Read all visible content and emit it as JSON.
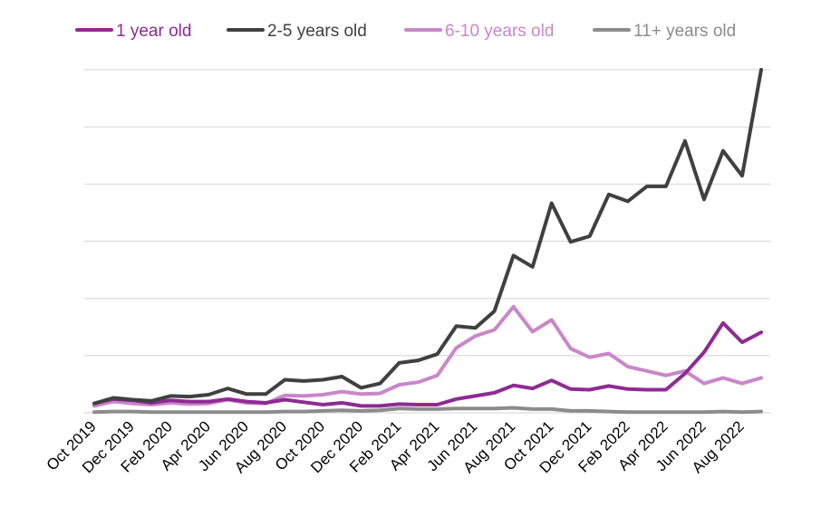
{
  "chart_data": {
    "type": "line",
    "title": "",
    "xlabel": "",
    "ylabel": "",
    "grid": true,
    "y_tick_labels_shown": false,
    "legend_placement": "top",
    "ylim": [
      0,
      55
    ],
    "x_tick_labels": [
      "Oct 2019",
      "Dec 2019",
      "Feb 2020",
      "Apr 2020",
      "Jun 2020",
      "Aug 2020",
      "Oct 2020",
      "Dec 2020",
      "Feb 2021",
      "Apr 2021",
      "Jun 2021",
      "Aug 2021",
      "Oct 2021",
      "Dec 2021",
      "Feb 2022",
      "Apr 2022",
      "Jun 2022",
      "Aug 2022"
    ],
    "x": [
      "Oct 2019",
      "Nov 2019",
      "Dec 2019",
      "Jan 2020",
      "Feb 2020",
      "Mar 2020",
      "Apr 2020",
      "May 2020",
      "Jun 2020",
      "Jul 2020",
      "Aug 2020",
      "Sep 2020",
      "Oct 2020",
      "Nov 2020",
      "Dec 2020",
      "Jan 2021",
      "Feb 2021",
      "Mar 2021",
      "Apr 2021",
      "May 2021",
      "Jun 2021",
      "Jul 2021",
      "Aug 2021",
      "Sep 2021",
      "Oct 2021",
      "Nov 2021",
      "Dec 2021",
      "Jan 2022",
      "Feb 2022",
      "Mar 2022",
      "Apr 2022",
      "May 2022",
      "Jun 2022",
      "Jul 2022",
      "Aug 2022",
      "Sep 2022"
    ],
    "series": [
      {
        "name": "1 year old",
        "color": "#8E2B93",
        "values": [
          1.5,
          2.2,
          2.0,
          1.6,
          2.0,
          1.8,
          1.8,
          2.2,
          1.8,
          1.6,
          2.1,
          1.7,
          1.3,
          1.6,
          1.1,
          1.1,
          1.4,
          1.3,
          1.3,
          2.2,
          2.7,
          3.2,
          4.4,
          3.9,
          5.2,
          3.8,
          3.7,
          4.3,
          3.8,
          3.7,
          3.7,
          6.3,
          9.7,
          14.4,
          11.3,
          12.9
        ]
      },
      {
        "name": "2-5 years old",
        "color": "#404040",
        "values": [
          1.5,
          2.4,
          2.1,
          1.9,
          2.7,
          2.6,
          2.9,
          3.9,
          3.0,
          3.0,
          5.3,
          5.1,
          5.3,
          5.8,
          4.0,
          4.7,
          8.0,
          8.4,
          9.4,
          13.9,
          13.6,
          16.3,
          25.2,
          23.4,
          33.6,
          27.4,
          28.3,
          35.0,
          33.9,
          36.3,
          36.3,
          43.6,
          34.2,
          42.0,
          38.0,
          55.0
        ]
      },
      {
        "name": "6-10 years old",
        "color": "#C987C9",
        "values": [
          1.1,
          1.8,
          1.5,
          1.3,
          1.6,
          1.4,
          1.5,
          2.1,
          1.6,
          1.5,
          2.8,
          2.7,
          2.9,
          3.4,
          3.0,
          3.1,
          4.5,
          4.9,
          6.0,
          10.4,
          12.3,
          13.3,
          17.0,
          13.0,
          14.9,
          10.3,
          8.9,
          9.5,
          7.4,
          6.7,
          6.0,
          6.7,
          4.7,
          5.6,
          4.7,
          5.6
        ]
      },
      {
        "name": "11+ years old",
        "color": "#8C8C8C",
        "values": [
          0.1,
          0.2,
          0.2,
          0.1,
          0.1,
          0.1,
          0.1,
          0.1,
          0.1,
          0.1,
          0.2,
          0.2,
          0.3,
          0.4,
          0.3,
          0.4,
          0.7,
          0.6,
          0.6,
          0.7,
          0.7,
          0.7,
          0.8,
          0.6,
          0.6,
          0.3,
          0.3,
          0.2,
          0.1,
          0.1,
          0.1,
          0.1,
          0.1,
          0.2,
          0.1,
          0.2
        ]
      }
    ]
  }
}
